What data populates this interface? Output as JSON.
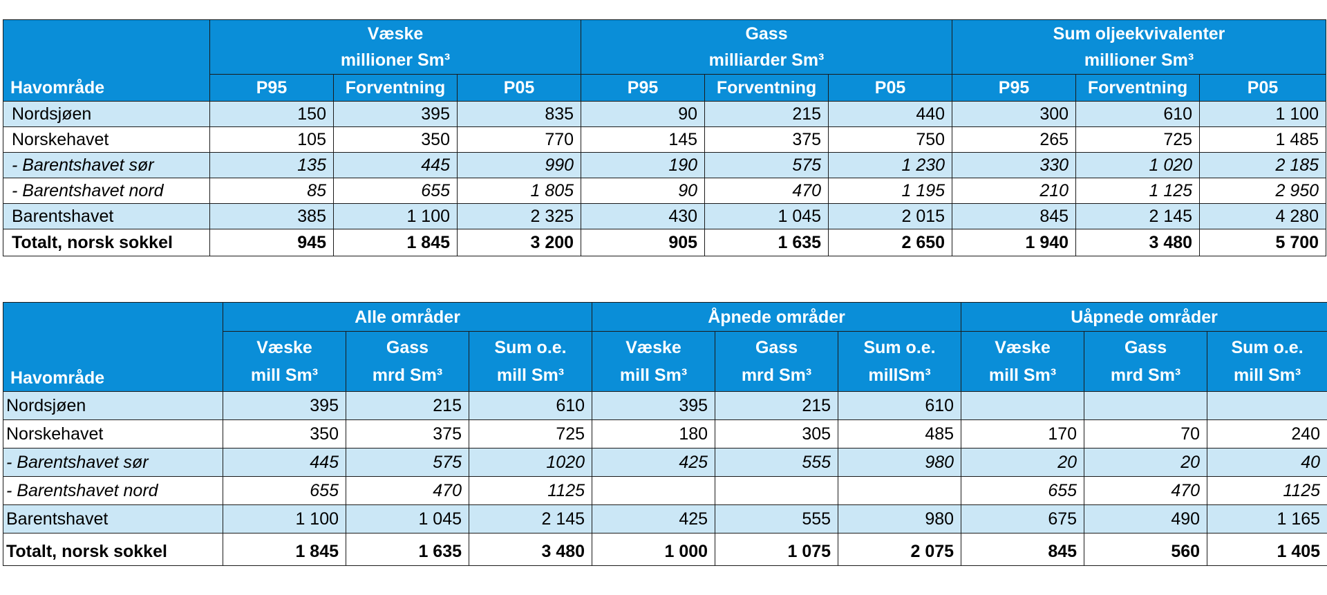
{
  "table1": {
    "header_first": "Havområde",
    "groups": [
      {
        "line1": "Væske",
        "line2": "millioner Sm³"
      },
      {
        "line1": "Gass",
        "line2": "milliarder Sm³"
      },
      {
        "line1": "Sum oljeekvivalenter",
        "line2": "millioner Sm³"
      }
    ],
    "subheaders": [
      "P95",
      "Forventning",
      "P05",
      "P95",
      "Forventning",
      "P05",
      "P95",
      "Forventning",
      "P05"
    ],
    "rows": [
      {
        "name": "Nordsjøen",
        "values": [
          "150",
          "395",
          "835",
          "90",
          "215",
          "440",
          "300",
          "610",
          "1 100"
        ]
      },
      {
        "name": "Norskehavet",
        "values": [
          "105",
          "350",
          "770",
          "145",
          "375",
          "750",
          "265",
          "725",
          "1 485"
        ]
      },
      {
        "name": "- Barentshavet sør",
        "values": [
          "135",
          "445",
          "990",
          "190",
          "575",
          "1 230",
          "330",
          "1 020",
          "2 185"
        ]
      },
      {
        "name": "- Barentshavet nord",
        "values": [
          "85",
          "655",
          "1 805",
          "90",
          "470",
          "1 195",
          "210",
          "1 125",
          "2 950"
        ]
      },
      {
        "name": "Barentshavet",
        "values": [
          "385",
          "1 100",
          "2 325",
          "430",
          "1 045",
          "2 015",
          "845",
          "2 145",
          "4 280"
        ]
      },
      {
        "name": "Totalt, norsk sokkel",
        "values": [
          "945",
          "1 845",
          "3 200",
          "905",
          "1 635",
          "2 650",
          "1 940",
          "3 480",
          "5 700"
        ]
      }
    ]
  },
  "table2": {
    "header_first": "Havområde",
    "groups": [
      "Alle områder",
      "Åpnede områder",
      "Uåpnede områder"
    ],
    "subheaders": [
      {
        "line1": "Væske",
        "line2": "mill Sm³"
      },
      {
        "line1": "Gass",
        "line2": "mrd Sm³"
      },
      {
        "line1": "Sum o.e.",
        "line2": "mill Sm³"
      },
      {
        "line1": "Væske",
        "line2": "mill Sm³"
      },
      {
        "line1": "Gass",
        "line2": "mrd Sm³"
      },
      {
        "line1": "Sum o.e.",
        "line2": "millSm³"
      },
      {
        "line1": "Væske",
        "line2": "mill Sm³"
      },
      {
        "line1": "Gass",
        "line2": "mrd Sm³"
      },
      {
        "line1": "Sum o.e.",
        "line2": "mill Sm³"
      }
    ],
    "rows": [
      {
        "name": "Nordsjøen",
        "values": [
          "395",
          "215",
          "610",
          "395",
          "215",
          "610",
          "",
          "",
          ""
        ]
      },
      {
        "name": "Norskehavet",
        "values": [
          "350",
          "375",
          "725",
          "180",
          "305",
          "485",
          "170",
          "70",
          "240"
        ]
      },
      {
        "name": "- Barentshavet sør",
        "values": [
          "445",
          "575",
          "1020",
          "425",
          "555",
          "980",
          "20",
          "20",
          "40"
        ]
      },
      {
        "name": "- Barentshavet nord",
        "values": [
          "655",
          "470",
          "1125",
          "",
          "",
          "",
          "655",
          "470",
          "1125"
        ]
      },
      {
        "name": "Barentshavet",
        "values": [
          "1 100",
          "1 045",
          "2 145",
          "425",
          "555",
          "980",
          "675",
          "490",
          "1 165"
        ]
      },
      {
        "name": "Totalt, norsk sokkel",
        "values": [
          "1 845",
          "1 635",
          "3 480",
          "1 000",
          "1 075",
          "2 075",
          "845",
          "560",
          "1 405"
        ]
      }
    ]
  },
  "colors": {
    "header_bg": "#0a8ed8",
    "header_text": "#ffffff",
    "row_shade": "#cbe7f6",
    "border": "#1a1a1a"
  }
}
